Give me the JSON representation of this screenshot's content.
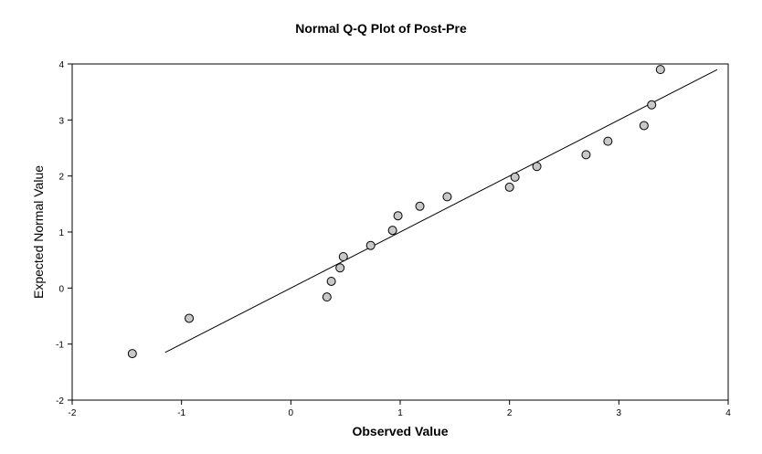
{
  "chart_data": {
    "type": "scatter",
    "title": "Normal Q-Q Plot of Post-Pre",
    "xlabel": "Observed Value",
    "ylabel": "Expected Normal Value",
    "xlim": [
      -2,
      4
    ],
    "ylim": [
      -2,
      4
    ],
    "x_ticks": [
      -2,
      -1,
      0,
      1,
      2,
      3,
      4
    ],
    "y_ticks": [
      -2,
      -1,
      0,
      1,
      2,
      3,
      4
    ],
    "grid": false,
    "reference_line": {
      "x": [
        -1.15,
        3.9
      ],
      "y": [
        -1.15,
        3.9
      ]
    },
    "points": [
      {
        "x": -1.45,
        "y": -1.17
      },
      {
        "x": -0.93,
        "y": -0.54
      },
      {
        "x": 0.33,
        "y": -0.16
      },
      {
        "x": 0.37,
        "y": 0.12
      },
      {
        "x": 0.45,
        "y": 0.36
      },
      {
        "x": 0.48,
        "y": 0.56
      },
      {
        "x": 0.73,
        "y": 0.76
      },
      {
        "x": 0.93,
        "y": 1.03
      },
      {
        "x": 0.98,
        "y": 1.29
      },
      {
        "x": 1.18,
        "y": 1.46
      },
      {
        "x": 1.43,
        "y": 1.63
      },
      {
        "x": 2.0,
        "y": 1.8
      },
      {
        "x": 2.05,
        "y": 1.98
      },
      {
        "x": 2.25,
        "y": 2.17
      },
      {
        "x": 2.7,
        "y": 2.38
      },
      {
        "x": 2.9,
        "y": 2.62
      },
      {
        "x": 3.23,
        "y": 2.9
      },
      {
        "x": 3.3,
        "y": 3.27
      },
      {
        "x": 3.38,
        "y": 3.9
      }
    ],
    "colors": {
      "marker_fill": "#c8c8c8",
      "marker_stroke": "#000000",
      "line": "#000000"
    }
  }
}
